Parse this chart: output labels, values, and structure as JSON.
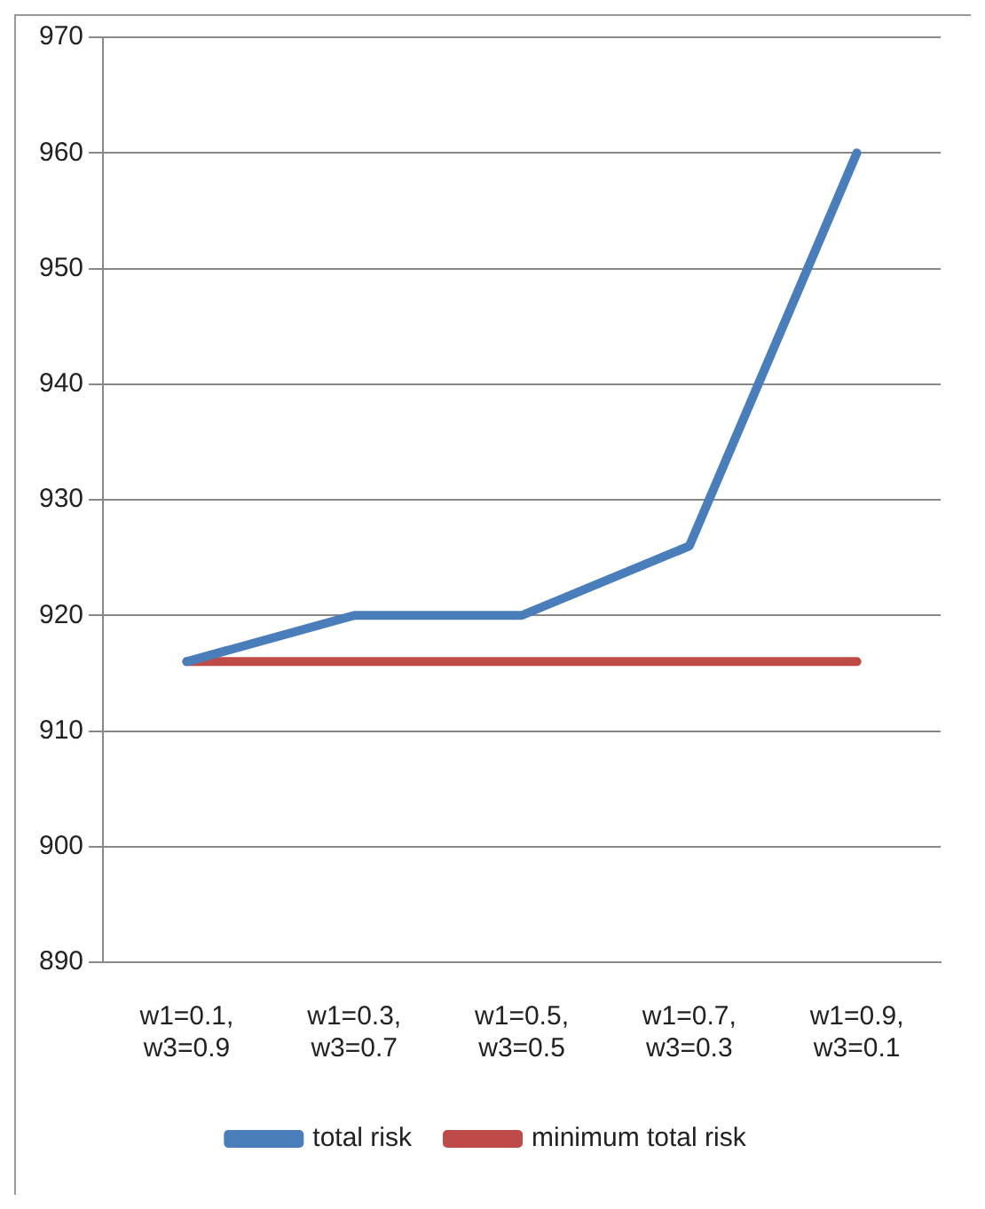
{
  "chart_data": {
    "type": "line",
    "categories": [
      "w1=0.1, w3=0.9",
      "w1=0.3, w3=0.7",
      "w1=0.5, w3=0.5",
      "w1=0.7, w3=0.3",
      "w1=0.9, w3=0.1"
    ],
    "series": [
      {
        "name": "total risk",
        "color": "#4a7ebb",
        "values": [
          916,
          920,
          920,
          926,
          960
        ]
      },
      {
        "name": "minimum total risk",
        "color": "#be4b48",
        "values": [
          916,
          916,
          916,
          916,
          916
        ]
      }
    ],
    "ylim": [
      890,
      970
    ],
    "yticks": [
      890,
      900,
      910,
      920,
      930,
      940,
      950,
      960,
      970
    ],
    "grid": "y",
    "legend": "bottom",
    "marker": "none",
    "line_style": "solid"
  }
}
